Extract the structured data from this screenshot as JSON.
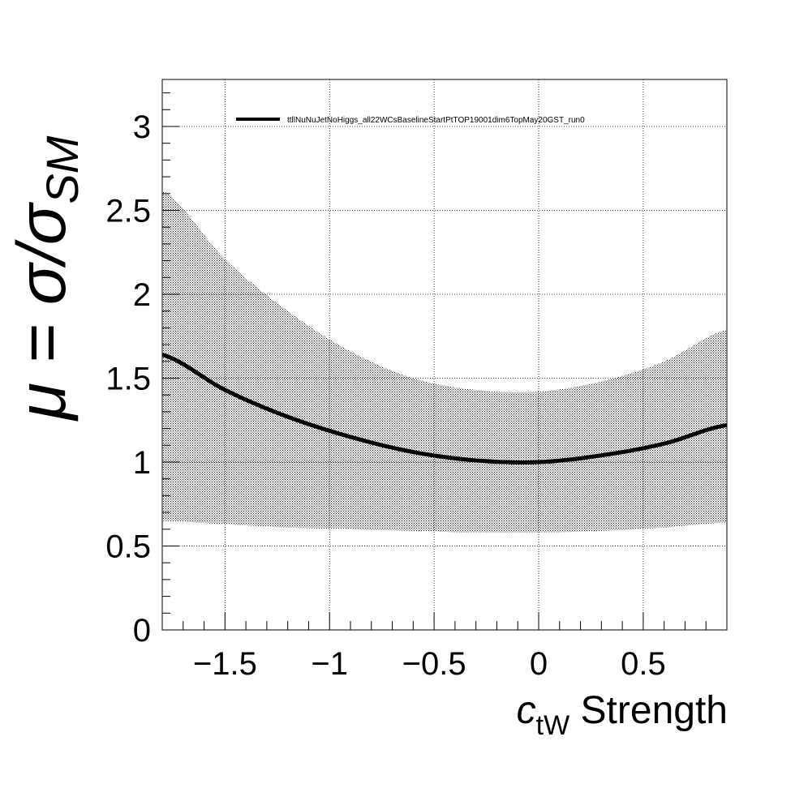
{
  "chart_data": {
    "type": "line",
    "title": "",
    "xlabel": {
      "main": "c",
      "sub": "tW",
      "rest": " Strength"
    },
    "ylabel": {
      "prefix": "μ = σ/σ",
      "sub": "SM"
    },
    "xlim": [
      -1.8,
      0.9
    ],
    "ylim": [
      0,
      3.28
    ],
    "x_ticks": [
      -1.5,
      -1,
      -0.5,
      0,
      0.5
    ],
    "x_tick_labels": [
      "−1.5",
      "−1",
      "−0.5",
      "0",
      "0.5"
    ],
    "y_ticks": [
      0,
      0.5,
      1,
      1.5,
      2,
      2.5,
      3
    ],
    "y_tick_labels": [
      "0",
      "0.5",
      "1",
      "1.5",
      "2",
      "2.5",
      "3"
    ],
    "grid": true,
    "legend_position": "top",
    "series": [
      {
        "name": "ttllNuNuJetNoHiggs_all22WCsBaselineStartPtTOP19001dim6TopMay20GST_run0",
        "x": [
          -1.8,
          -1.5,
          -1.2,
          -0.9,
          -0.6,
          -0.3,
          0.0,
          0.3,
          0.6,
          0.9
        ],
        "y": [
          1.64,
          1.43,
          1.27,
          1.15,
          1.06,
          1.01,
          1.0,
          1.04,
          1.11,
          1.22
        ],
        "band_upper": [
          2.62,
          2.21,
          1.9,
          1.66,
          1.5,
          1.43,
          1.42,
          1.48,
          1.6,
          1.79
        ],
        "band_lower": [
          0.65,
          0.63,
          0.61,
          0.6,
          0.59,
          0.58,
          0.58,
          0.59,
          0.61,
          0.64
        ],
        "color": "#000000"
      }
    ]
  }
}
